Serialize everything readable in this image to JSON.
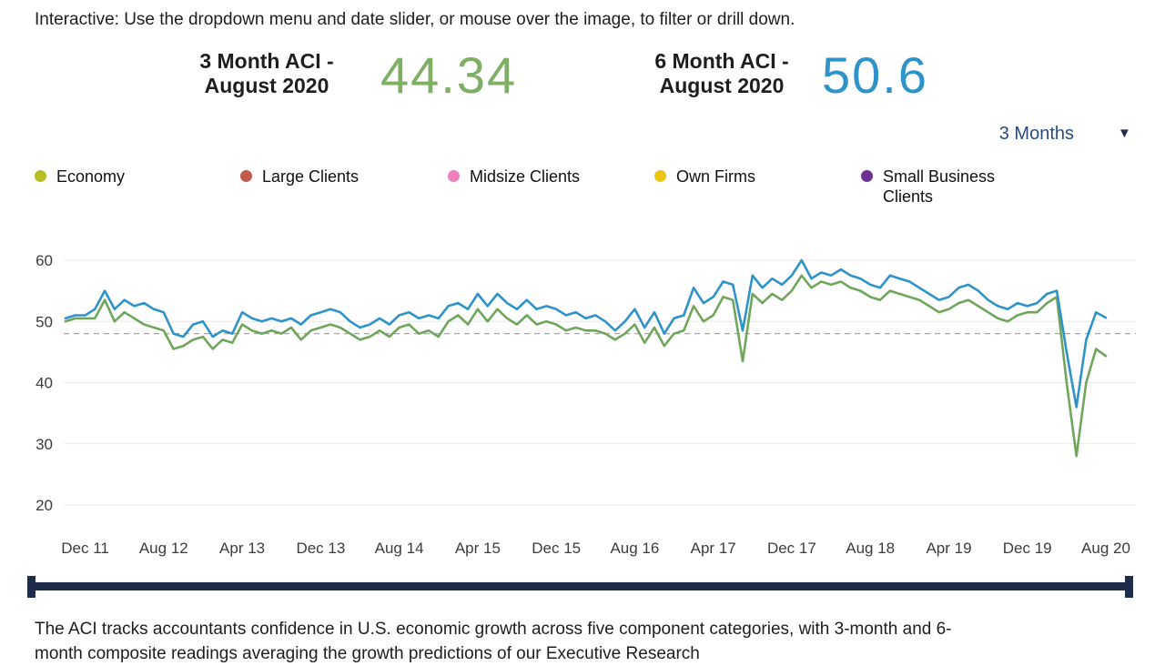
{
  "header": {
    "instruction": "Interactive: Use the dropdown menu and date slider, or mouse over the image, to filter or drill down."
  },
  "kpis": [
    {
      "label_line1": "3 Month ACI -",
      "label_line2": "August 2020",
      "value": "44.34",
      "color": "#7fae65"
    },
    {
      "label_line1": "6 Month ACI -",
      "label_line2": "August 2020",
      "value": "50.6",
      "color": "#2e93c8"
    }
  ],
  "dropdown": {
    "selected": "3 Months",
    "caret_icon": "▼"
  },
  "legend": [
    {
      "label": "Economy",
      "color": "#b6be23"
    },
    {
      "label": "Large Clients",
      "color": "#c05b49"
    },
    {
      "label": "Midsize Clients",
      "color": "#ee7fc1"
    },
    {
      "label": "Own Firms",
      "color": "#eac613"
    },
    {
      "label": "Small Business Clients",
      "color": "#6d3192"
    }
  ],
  "theme": {
    "navy_dark": "#1e2b4a",
    "navy_text": "#2a4b80"
  },
  "chart_data": {
    "type": "line",
    "title": "",
    "xlabel": "",
    "ylabel": "",
    "x_start": "Oct 2011",
    "x_end": "Aug 2020",
    "frequency": "monthly",
    "x_tick_labels": [
      "Dec 11",
      "Aug 12",
      "Apr 13",
      "Dec 13",
      "Aug 14",
      "Apr 15",
      "Dec 15",
      "Aug 16",
      "Apr 17",
      "Dec 17",
      "Aug 18",
      "Apr 19",
      "Dec 19",
      "Aug 20"
    ],
    "x_tick_indices": [
      2,
      10,
      18,
      26,
      34,
      42,
      50,
      58,
      66,
      74,
      82,
      90,
      98,
      106
    ],
    "y_ticks": [
      20,
      30,
      40,
      50,
      60
    ],
    "ylim": [
      17,
      63
    ],
    "reference_line": 48,
    "grid": true,
    "legend_position": "top",
    "series": [
      {
        "name": "3 Month ACI",
        "color": "#6fa65c",
        "values": [
          50,
          50.5,
          50.5,
          50.5,
          53.5,
          50,
          51.5,
          50.5,
          49.5,
          49,
          48.5,
          45.5,
          46,
          47,
          47.5,
          45.5,
          47,
          46.5,
          49.5,
          48.5,
          48,
          48.5,
          48,
          49,
          47,
          48.5,
          49,
          49.5,
          49,
          48,
          47,
          47.5,
          48.5,
          47.5,
          49,
          49.5,
          48,
          48.5,
          47.5,
          50,
          51,
          49.5,
          52,
          50,
          52,
          50.5,
          49.5,
          51,
          49.5,
          50,
          49.5,
          48.5,
          49,
          48.5,
          48.5,
          48,
          47,
          48,
          49.5,
          46.5,
          49,
          46,
          48,
          48.5,
          52.5,
          50,
          51,
          54,
          53.5,
          43.5,
          54.5,
          53,
          54.5,
          53.5,
          55,
          57.5,
          55.5,
          56.5,
          56,
          56.5,
          55.5,
          55,
          54,
          53.5,
          55,
          54.5,
          54,
          53.5,
          52.5,
          51.5,
          52,
          53,
          53.5,
          52.5,
          51.5,
          50.5,
          50,
          51,
          51.5,
          51.5,
          53,
          54,
          40,
          28,
          40,
          45.5,
          44.34
        ]
      },
      {
        "name": "6 Month ACI",
        "color": "#2e93c8",
        "values": [
          50.5,
          51,
          51,
          52,
          55,
          52,
          53.5,
          52.5,
          53,
          52,
          51.5,
          48,
          47.5,
          49.5,
          50,
          47.5,
          48.5,
          48,
          51.5,
          50.5,
          50,
          50.5,
          50,
          50.5,
          49.5,
          51,
          51.5,
          52,
          51.5,
          50,
          49,
          49.5,
          50.5,
          49.5,
          51,
          51.5,
          50.5,
          51,
          50.5,
          52.5,
          53,
          52,
          54.5,
          52.5,
          54.5,
          53,
          52,
          53.5,
          52,
          52.5,
          52,
          51,
          51.5,
          50.5,
          51,
          50,
          48.5,
          50,
          52,
          49,
          51.5,
          48,
          50.5,
          51,
          55.5,
          53,
          54,
          56.5,
          56,
          48.5,
          57.5,
          55.5,
          57,
          56,
          57.5,
          60,
          57,
          58,
          57.5,
          58.5,
          57.5,
          57,
          56,
          55.5,
          57.5,
          57,
          56.5,
          55.5,
          54.5,
          53.5,
          54,
          55.5,
          56,
          55,
          53.5,
          52.5,
          52,
          53,
          52.5,
          53,
          54.5,
          55,
          45,
          36,
          47,
          51.5,
          50.6
        ]
      }
    ]
  },
  "footer": {
    "text": "The ACI tracks accountants confidence in U.S. economic growth across five component categories, with 3-month and 6-month composite readings averaging the growth predictions of our Executive Research"
  }
}
